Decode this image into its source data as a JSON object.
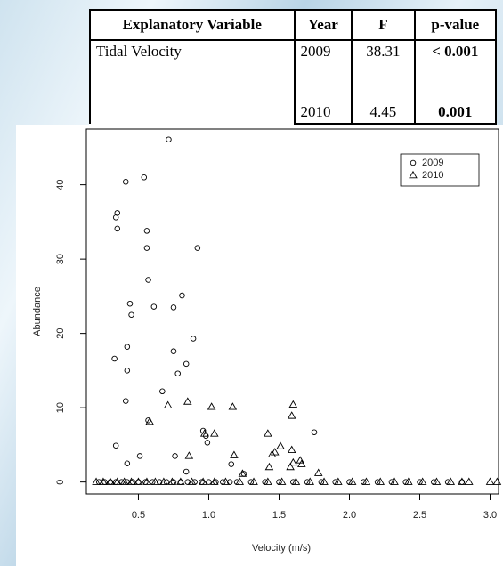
{
  "table": {
    "header": [
      "Explanatory Variable",
      "Year",
      "F",
      "p-value"
    ],
    "variable": "Tidal Velocity",
    "rows": [
      {
        "year": "2009",
        "F": "38.31",
        "p": "< 0.001"
      },
      {
        "year": "2010",
        "F": "4.45",
        "p": "0.001"
      }
    ]
  },
  "chart_data": {
    "type": "scatter",
    "x_label": "Velocity (m/s)",
    "y_label": "Abundance",
    "xlim": [
      0.13,
      3.06
    ],
    "ylim": [
      -1.6,
      47.5
    ],
    "xticks": [
      0.5,
      {
        "value": 1,
        "label": "1.0"
      },
      1.5,
      {
        "value": 2,
        "label": "2.0"
      },
      2.5,
      {
        "value": 3,
        "label": "3.0"
      }
    ],
    "yticks": [
      0,
      10,
      20,
      30,
      40
    ],
    "legend": "top-right",
    "series": [
      {
        "name": "2009",
        "marker": "circle",
        "color": "#000000",
        "x": [
          0.715,
          0.54,
          0.41,
          0.35,
          0.34,
          0.35,
          0.56,
          0.56,
          0.92,
          0.57,
          0.61,
          0.44,
          0.45,
          0.81,
          0.75,
          0.89,
          0.42,
          0.33,
          0.75,
          0.84,
          0.42,
          0.78,
          0.67,
          0.41,
          0.96,
          0.98,
          0.99,
          1.75,
          0.34,
          0.57,
          0.51,
          0.76,
          0.42,
          1.16,
          0.84,
          1.25,
          0.22,
          0.26,
          0.3,
          0.34,
          0.38,
          0.42,
          0.46,
          0.5,
          0.55,
          0.6,
          0.65,
          0.7,
          0.75,
          0.8,
          0.85,
          0.9,
          0.95,
          1,
          1.05,
          1.1,
          1.15,
          1.2,
          1.3,
          1.4,
          1.5,
          1.6,
          1.7,
          1.8,
          1.9,
          2,
          2.1,
          2.2,
          2.3,
          2.4,
          2.5,
          2.6,
          2.7,
          2.8
        ],
        "values": [
          46.1,
          41.0,
          40.4,
          36.2,
          35.6,
          34.1,
          33.8,
          31.5,
          31.5,
          27.2,
          23.6,
          24.0,
          22.5,
          25.1,
          23.5,
          19.3,
          18.2,
          16.6,
          17.6,
          15.9,
          15.0,
          14.6,
          12.2,
          10.9,
          6.9,
          6.2,
          5.3,
          6.7,
          4.9,
          8.3,
          3.5,
          3.5,
          2.5,
          2.4,
          1.4,
          1.1,
          0,
          0,
          0,
          0,
          0,
          0,
          0,
          0,
          0,
          0,
          0,
          0,
          0,
          0,
          0,
          0,
          0,
          0,
          0,
          0,
          0,
          0,
          0,
          0,
          0,
          0,
          0,
          0,
          0,
          0,
          0,
          0,
          0,
          0,
          0,
          0,
          0,
          0
        ]
      },
      {
        "name": "2010",
        "marker": "triangle",
        "color": "#000000",
        "x": [
          0.58,
          0.71,
          0.85,
          1.02,
          1.04,
          1.17,
          1.18,
          0.86,
          0.97,
          1.24,
          1.42,
          1.45,
          1.43,
          1.47,
          1.51,
          1.59,
          1.6,
          1.59,
          1.6,
          1.65,
          1.66,
          1.78,
          1.58,
          0.2,
          0.25,
          0.3,
          0.35,
          0.4,
          0.45,
          0.5,
          0.56,
          0.62,
          0.68,
          0.74,
          0.8,
          0.88,
          0.96,
          1.04,
          1.12,
          1.22,
          1.32,
          1.42,
          1.52,
          1.62,
          1.72,
          1.82,
          1.92,
          2.02,
          2.12,
          2.22,
          2.32,
          2.42,
          2.52,
          2.62,
          2.72,
          2.8,
          2.85,
          3.0,
          3.05
        ],
        "values": [
          8.1,
          10.3,
          10.8,
          10.1,
          6.5,
          10.1,
          3.6,
          3.5,
          6.5,
          1.1,
          6.5,
          3.7,
          2.0,
          4.0,
          4.8,
          8.9,
          10.4,
          4.3,
          2.6,
          2.9,
          2.4,
          1.2,
          2.0,
          0,
          0,
          0,
          0,
          0,
          0,
          0,
          0,
          0,
          0,
          0,
          0,
          0,
          0,
          0,
          0,
          0,
          0,
          0,
          0,
          0,
          0,
          0,
          0,
          0,
          0,
          0,
          0,
          0,
          0,
          0,
          0,
          0,
          0,
          0,
          0
        ]
      }
    ]
  }
}
